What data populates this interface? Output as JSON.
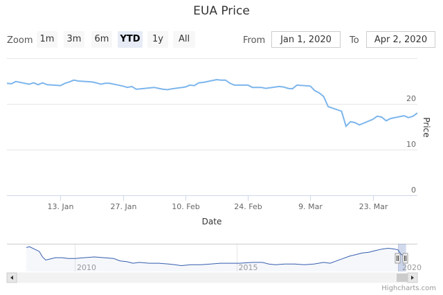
{
  "title": "EUA Price",
  "zoom": {
    "label": "Zoom",
    "buttons": [
      "1m",
      "3m",
      "6m",
      "YTD",
      "1y",
      "All"
    ],
    "selected": "YTD"
  },
  "range": {
    "from_label": "From",
    "from_value": "Jan 1, 2020",
    "to_label": "To",
    "to_value": "Apr 2, 2020"
  },
  "credits": "Highcharts.com",
  "chart_data": {
    "type": "line",
    "title": "EUA Price",
    "xlabel": "Date",
    "ylabel": "Price",
    "xlim": [
      "2020-01-01",
      "2020-04-02"
    ],
    "ylim": [
      0,
      30
    ],
    "yticks": [
      0,
      10,
      20
    ],
    "xtick_labels": [
      "13. Jan",
      "27. Jan",
      "10. Feb",
      "24. Feb",
      "9. Mar",
      "23. Mar"
    ],
    "xtick_dates": [
      "2020-01-13",
      "2020-01-27",
      "2020-02-10",
      "2020-02-24",
      "2020-03-09",
      "2020-03-23"
    ],
    "grid": true,
    "color": "#7cb5ec",
    "series": [
      {
        "x": [
          "2020-01-01",
          "2020-01-02",
          "2020-01-03",
          "2020-01-06",
          "2020-01-07",
          "2020-01-08",
          "2020-01-09",
          "2020-01-10",
          "2020-01-13",
          "2020-01-14",
          "2020-01-15",
          "2020-01-16",
          "2020-01-17",
          "2020-01-20",
          "2020-01-21",
          "2020-01-22",
          "2020-01-23",
          "2020-01-24",
          "2020-01-27",
          "2020-01-28",
          "2020-01-29",
          "2020-01-30",
          "2020-01-31",
          "2020-02-03",
          "2020-02-04",
          "2020-02-05",
          "2020-02-06",
          "2020-02-07",
          "2020-02-10",
          "2020-02-11",
          "2020-02-12",
          "2020-02-13",
          "2020-02-14",
          "2020-02-17",
          "2020-02-18",
          "2020-02-19",
          "2020-02-20",
          "2020-02-21",
          "2020-02-24",
          "2020-02-25",
          "2020-02-26",
          "2020-02-27",
          "2020-02-28",
          "2020-03-02",
          "2020-03-03",
          "2020-03-04",
          "2020-03-05",
          "2020-03-06",
          "2020-03-09",
          "2020-03-10",
          "2020-03-11",
          "2020-03-12",
          "2020-03-13",
          "2020-03-16",
          "2020-03-17",
          "2020-03-18",
          "2020-03-19",
          "2020-03-20",
          "2020-03-23",
          "2020-03-24",
          "2020-03-25",
          "2020-03-26",
          "2020-03-27",
          "2020-03-30",
          "2020-03-31",
          "2020-04-01",
          "2020-04-02"
        ],
        "values": [
          24.5,
          24.4,
          24.9,
          24.3,
          24.6,
          24.2,
          24.6,
          24.2,
          24.0,
          24.5,
          24.8,
          25.2,
          25.0,
          24.8,
          24.6,
          24.3,
          24.5,
          24.5,
          23.9,
          23.6,
          23.8,
          23.2,
          23.3,
          23.6,
          23.4,
          23.2,
          23.1,
          23.3,
          23.7,
          24.1,
          24.0,
          24.6,
          24.7,
          25.3,
          25.2,
          25.2,
          24.5,
          24.1,
          24.1,
          23.6,
          23.6,
          23.6,
          23.4,
          23.8,
          23.7,
          23.4,
          23.3,
          24.1,
          23.9,
          22.9,
          22.4,
          21.6,
          19.4,
          18.4,
          15.1,
          16.1,
          15.9,
          15.4,
          16.6,
          17.3,
          17.1,
          16.3,
          16.8,
          17.4,
          17.0,
          17.3,
          18.0
        ]
      }
    ]
  },
  "navigator": {
    "labels": [
      "2010",
      "2015",
      "2020"
    ],
    "label_years": [
      2010,
      2015,
      2020
    ],
    "xlim": [
      2008.2,
      2020.3
    ],
    "series": {
      "x": [
        2008.5,
        2008.6,
        2008.8,
        2008.9,
        2009.0,
        2009.1,
        2009.2,
        2009.4,
        2009.6,
        2009.8,
        2010.0,
        2010.3,
        2010.6,
        2010.9,
        2011.2,
        2011.4,
        2011.6,
        2011.8,
        2012.0,
        2012.3,
        2012.6,
        2012.9,
        2013.1,
        2013.3,
        2013.6,
        2013.9,
        2014.2,
        2014.5,
        2014.8,
        2015.1,
        2015.5,
        2015.8,
        2016.0,
        2016.2,
        2016.5,
        2016.8,
        2017.1,
        2017.4,
        2017.7,
        2017.9,
        2018.1,
        2018.3,
        2018.5,
        2018.7,
        2018.9,
        2019.1,
        2019.3,
        2019.5,
        2019.7,
        2019.9,
        2020.0,
        2020.1,
        2020.2
      ],
      "values": [
        27,
        28,
        24,
        22,
        15,
        11,
        12,
        14,
        14,
        13,
        13,
        14,
        15,
        14,
        13,
        10,
        9,
        7,
        8,
        7,
        7,
        6,
        5,
        4,
        5,
        5,
        6,
        7,
        7,
        7,
        8,
        8,
        6,
        5,
        6,
        6,
        5,
        6,
        8,
        7,
        10,
        13,
        16,
        18,
        20,
        21,
        23,
        25,
        26,
        25,
        24,
        18,
        17
      ]
    },
    "selection": [
      "2020-01-01",
      "2020-04-02"
    ]
  }
}
